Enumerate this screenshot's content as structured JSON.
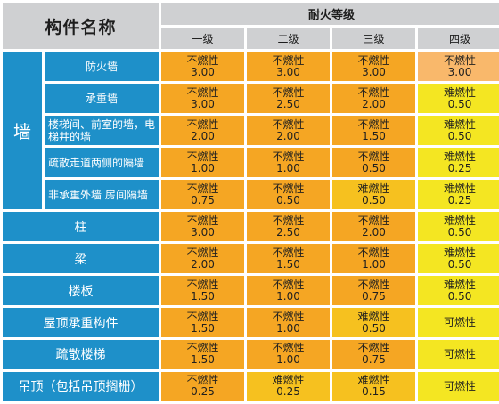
{
  "header": {
    "component_title": "构件名称",
    "fire_rating_title": "耐火等级",
    "grades": [
      "一级",
      "二级",
      "三级",
      "四级"
    ]
  },
  "wall_label": "墙",
  "rows": [
    {
      "name": "防火墙",
      "cells": [
        {
          "t": "不燃性",
          "v": "3.00",
          "c": "c-orange"
        },
        {
          "t": "不燃性",
          "v": "3.00",
          "c": "c-orange"
        },
        {
          "t": "不燃性",
          "v": "3.00",
          "c": "c-orange"
        },
        {
          "t": "不燃性",
          "v": "3.00",
          "c": "c-peach"
        }
      ]
    },
    {
      "name": "承重墙",
      "cells": [
        {
          "t": "不燃性",
          "v": "3.00",
          "c": "c-orange"
        },
        {
          "t": "不燃性",
          "v": "2.50",
          "c": "c-orange"
        },
        {
          "t": "不燃性",
          "v": "2.00",
          "c": "c-orange"
        },
        {
          "t": "难燃性",
          "v": "0.50",
          "c": "c-yellow"
        }
      ]
    },
    {
      "name": "楼梯间、前室的墙，电梯井的墙",
      "cells": [
        {
          "t": "不燃性",
          "v": "2.00",
          "c": "c-orange"
        },
        {
          "t": "不燃性",
          "v": "2.00",
          "c": "c-orange"
        },
        {
          "t": "不燃性",
          "v": "1.50",
          "c": "c-orange"
        },
        {
          "t": "难燃性",
          "v": "0.50",
          "c": "c-yellow"
        }
      ]
    },
    {
      "name": "疏散走道两侧的隔墙",
      "cells": [
        {
          "t": "不燃性",
          "v": "1.00",
          "c": "c-orange"
        },
        {
          "t": "不燃性",
          "v": "1.00",
          "c": "c-orange"
        },
        {
          "t": "不燃性",
          "v": "0.50",
          "c": "c-orange"
        },
        {
          "t": "难燃性",
          "v": "0.25",
          "c": "c-yellow"
        }
      ]
    },
    {
      "name": "非承重外墙 房间隔墙",
      "cells": [
        {
          "t": "不燃性",
          "v": "0.75",
          "c": "c-orange"
        },
        {
          "t": "不燃性",
          "v": "0.50",
          "c": "c-orange"
        },
        {
          "t": "难燃性",
          "v": "0.50",
          "c": "c-gold"
        },
        {
          "t": "难燃性",
          "v": "0.25",
          "c": "c-yellow"
        }
      ]
    }
  ],
  "other_rows": [
    {
      "name": "柱",
      "cells": [
        {
          "t": "不燃性",
          "v": "3.00",
          "c": "c-orange"
        },
        {
          "t": "不燃性",
          "v": "2.50",
          "c": "c-orange"
        },
        {
          "t": "不燃性",
          "v": "2.00",
          "c": "c-orange"
        },
        {
          "t": "难燃性",
          "v": "0.50",
          "c": "c-yellow"
        }
      ]
    },
    {
      "name": "梁",
      "cells": [
        {
          "t": "不燃性",
          "v": "2.00",
          "c": "c-orange"
        },
        {
          "t": "不燃性",
          "v": "1.50",
          "c": "c-orange"
        },
        {
          "t": "不燃性",
          "v": "1.00",
          "c": "c-orange"
        },
        {
          "t": "难燃性",
          "v": "0.50",
          "c": "c-yellow"
        }
      ]
    },
    {
      "name": "楼板",
      "cells": [
        {
          "t": "不燃性",
          "v": "1.50",
          "c": "c-orange"
        },
        {
          "t": "不燃性",
          "v": "1.00",
          "c": "c-orange"
        },
        {
          "t": "不燃性",
          "v": "0.75",
          "c": "c-orange"
        },
        {
          "t": "难燃性",
          "v": "0.50",
          "c": "c-yellow"
        }
      ]
    },
    {
      "name": "屋顶承重构件",
      "cells": [
        {
          "t": "不燃性",
          "v": "1.50",
          "c": "c-orange"
        },
        {
          "t": "不燃性",
          "v": "1.00",
          "c": "c-orange"
        },
        {
          "t": "难燃性",
          "v": "0.50",
          "c": "c-gold"
        },
        {
          "t": "可燃性",
          "v": "",
          "c": "c-yellow"
        }
      ]
    },
    {
      "name": "疏散楼梯",
      "cells": [
        {
          "t": "不燃性",
          "v": "1.50",
          "c": "c-orange"
        },
        {
          "t": "不燃性",
          "v": "1.00",
          "c": "c-orange"
        },
        {
          "t": "不燃性",
          "v": "0.75",
          "c": "c-orange"
        },
        {
          "t": "可燃性",
          "v": "",
          "c": "c-yellow"
        }
      ]
    },
    {
      "name": "吊顶（包括吊顶搁栅）",
      "cells": [
        {
          "t": "不燃性",
          "v": "0.25",
          "c": "c-orange"
        },
        {
          "t": "难燃性",
          "v": "0.25",
          "c": "c-gold"
        },
        {
          "t": "难燃性",
          "v": "0.15",
          "c": "c-gold"
        },
        {
          "t": "可燃性",
          "v": "",
          "c": "c-yellow"
        }
      ]
    }
  ]
}
